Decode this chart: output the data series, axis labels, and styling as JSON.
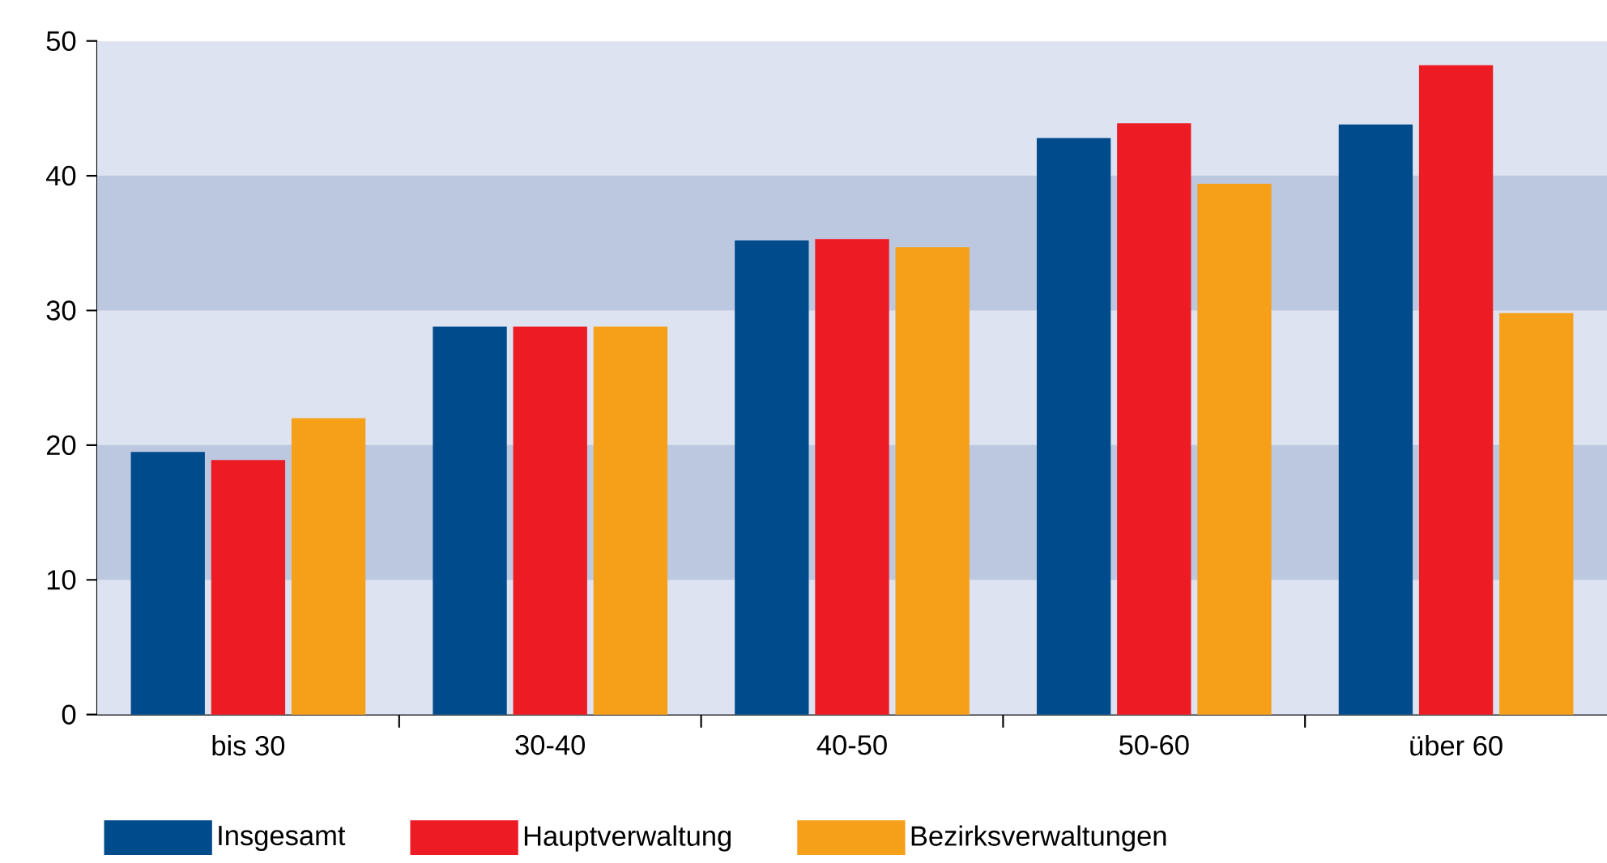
{
  "chart_data": {
    "type": "bar",
    "categories": [
      "bis 30",
      "30-40",
      "40-50",
      "50-60",
      "über 60"
    ],
    "series": [
      {
        "name": "Insgesamt",
        "color": "#004b8c",
        "values": [
          19.5,
          28.8,
          35.2,
          42.8,
          43.8
        ]
      },
      {
        "name": "Hauptverwaltung",
        "color": "#ed1c24",
        "values": [
          18.9,
          28.8,
          35.3,
          43.9,
          48.2
        ]
      },
      {
        "name": "Bezirksverwaltungen",
        "color": "#f6a01a",
        "values": [
          22.0,
          28.8,
          34.7,
          39.4,
          29.8
        ]
      }
    ],
    "ylim": [
      0,
      50
    ],
    "yticks": [
      0,
      10,
      20,
      30,
      40,
      50
    ],
    "bands": [
      {
        "axis": "y",
        "from": 10,
        "to": 20,
        "color": "#bcc8e0"
      },
      {
        "axis": "y",
        "from": 30,
        "to": 40,
        "color": "#bcc8e0"
      }
    ],
    "grid": false,
    "legend": "bottom"
  }
}
